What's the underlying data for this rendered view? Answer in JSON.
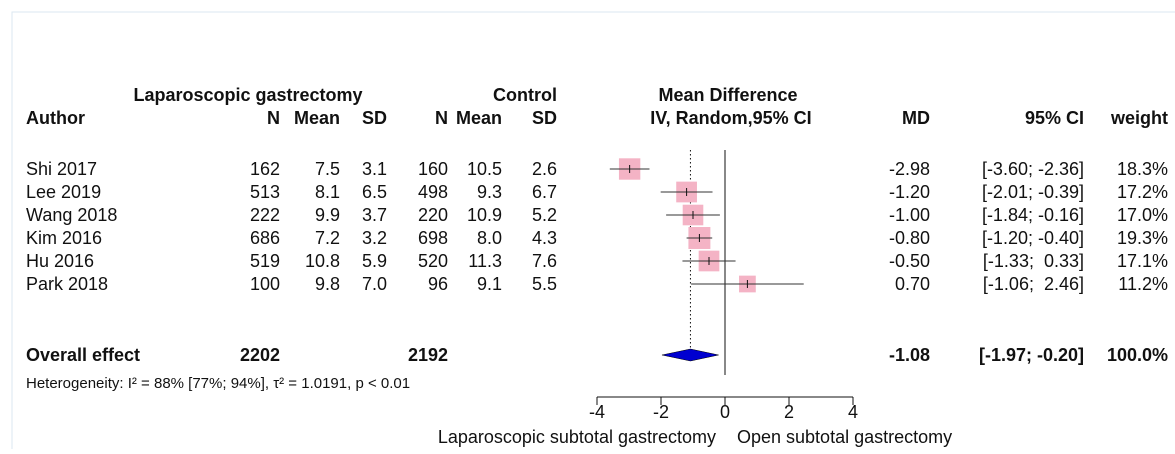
{
  "chart_data": {
    "type": "forest",
    "group_labels": [
      "Laparoscopic gastrectomy",
      "Control"
    ],
    "effect_title": "Mean Difference",
    "effect_subtitle": "IV, Random,95% CI",
    "columns": [
      "Author",
      "N",
      "Mean",
      "SD",
      "N",
      "Mean",
      "SD"
    ],
    "stat_columns": [
      "MD",
      "95% CI",
      "weight"
    ],
    "rows": [
      [
        "Shi 2017",
        "162",
        "7.5",
        "3.1",
        "160",
        "10.5",
        "2.6"
      ],
      [
        "Lee 2019",
        "513",
        "8.1",
        "6.5",
        "498",
        "9.3",
        "6.7"
      ],
      [
        "Wang 2018",
        "222",
        "9.9",
        "3.7",
        "220",
        "10.9",
        "5.2"
      ],
      [
        "Kim 2016",
        "686",
        "7.2",
        "3.2",
        "698",
        "8.0",
        "4.3"
      ],
      [
        "Hu 2016",
        "519",
        "10.8",
        "5.9",
        "520",
        "11.3",
        "7.6"
      ],
      [
        "Park 2018",
        "100",
        "9.8",
        "7.0",
        "96",
        "9.1",
        "5.5"
      ]
    ],
    "values": [
      -2.98,
      -1.2,
      -1,
      -0.8,
      -0.5,
      0.7
    ],
    "value_labels": [
      "-2.98",
      "-1.20",
      "-1.00",
      "-0.80",
      "-0.50",
      "0.70"
    ],
    "lower": [
      -3.6,
      -2.01,
      -1.84,
      -1.2,
      -1.33,
      -1.06
    ],
    "upper": [
      -2.36,
      -0.39,
      -0.16,
      -0.4,
      0.33,
      2.46
    ],
    "ci_labels": [
      "[-3.60; -2.36]",
      "[-2.01; -0.39]",
      "[-1.84; -0.16]",
      "[-1.20; -0.40]",
      "[-1.33;  0.33]",
      "[-1.06;  2.46]"
    ],
    "weights": [
      18.3,
      17.2,
      17.0,
      19.3,
      17.1,
      11.2
    ],
    "weight_labels": [
      "18.3%",
      "17.2%",
      "17.0%",
      "19.3%",
      "17.1%",
      "11.2%"
    ],
    "overall": {
      "label": "Overall effect",
      "n1": "2202",
      "n2": "2192",
      "value": -1.08,
      "value_label": "-1.08",
      "lower": -1.97,
      "upper": -0.2,
      "ci_label": "[-1.97; -0.20]",
      "weight_label": "100.0%"
    },
    "heterogeneity": "Heterogeneity: I² = 88% [77%; 94%], τ² = 1.0191, p < 0.01",
    "xlim": [
      -4,
      4
    ],
    "xticks": [
      -4,
      -2,
      0,
      2,
      4
    ],
    "ref_line": 0,
    "favours": [
      "Laparoscopic subtotal gastrectomy",
      "Open subtotal gastrectomy"
    ],
    "box_color": "#f4b3c5",
    "diamond_color": "#0000d0"
  }
}
